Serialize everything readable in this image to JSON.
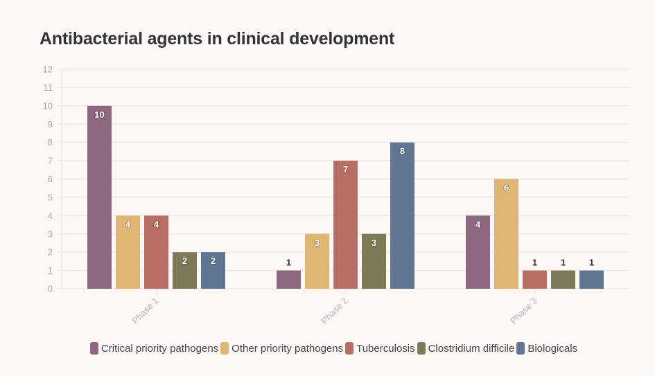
{
  "chart_data": {
    "type": "bar",
    "title": "Antibacterial agents in clinical development",
    "categories": [
      "Phase 1",
      "Phase 2",
      "Phase 3"
    ],
    "series": [
      {
        "name": "Critical priority pathogens",
        "color": "#8e6880",
        "values": [
          10,
          1,
          4
        ]
      },
      {
        "name": "Other priority pathogens",
        "color": "#deb572",
        "values": [
          4,
          3,
          6
        ]
      },
      {
        "name": "Tuberculosis",
        "color": "#b76f65",
        "values": [
          4,
          7,
          1
        ]
      },
      {
        "name": "Clostridium difficile",
        "color": "#7e7a57",
        "values": [
          2,
          3,
          1
        ]
      },
      {
        "name": "Biologicals",
        "color": "#617690",
        "values": [
          2,
          8,
          1
        ]
      }
    ],
    "xlabel": "",
    "ylabel": "",
    "ylim": [
      0,
      12
    ],
    "yticks": [
      0,
      1,
      2,
      3,
      4,
      5,
      6,
      7,
      8,
      9,
      10,
      11,
      12
    ],
    "grid": true,
    "legend_position": "bottom",
    "data_labels": true
  }
}
